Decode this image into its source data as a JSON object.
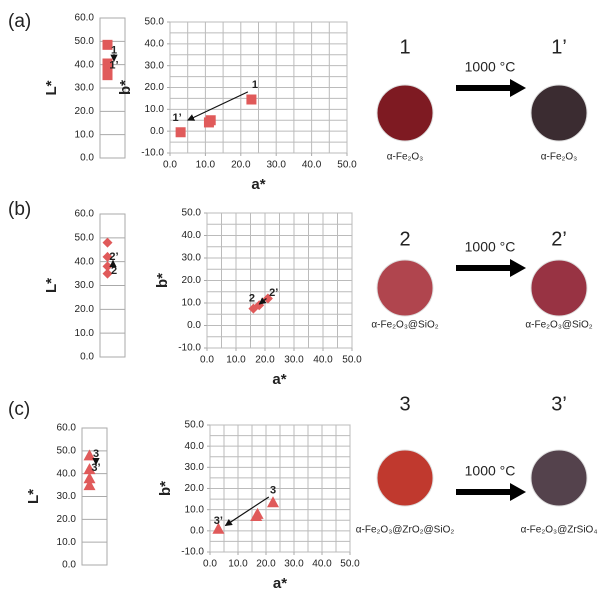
{
  "chart_data": [
    {
      "type": "scatter",
      "ylabel": "L*",
      "marker": "square",
      "color": "#e05a5a",
      "values": [
        48.5,
        40.5,
        38,
        35.5
      ],
      "ylim": [
        0,
        60
      ],
      "yticks": [
        {
          "value": 0,
          "label": "0.0"
        },
        {
          "value": 10,
          "label": "10.0"
        },
        {
          "value": 20,
          "label": "20.0"
        },
        {
          "value": 30,
          "label": "30.0"
        },
        {
          "value": 40,
          "label": "40.0"
        },
        {
          "value": 50,
          "label": "50.0"
        },
        {
          "value": 60,
          "label": "60.0"
        }
      ],
      "grid": true,
      "annotations": [
        "1",
        "1’"
      ]
    },
    {
      "type": "scatter",
      "xlabel": "a*",
      "ylabel": "b*",
      "marker": "square",
      "color": "#e05a5a",
      "x": [
        23,
        11.5,
        11,
        3
      ],
      "values": [
        14.5,
        5,
        4,
        -0.5
      ],
      "xlim": [
        0,
        50
      ],
      "ylim": [
        -10,
        50
      ],
      "xticks": [
        {
          "value": 0,
          "label": "0.0"
        },
        {
          "value": 10,
          "label": "10.0"
        },
        {
          "value": 20,
          "label": "20.0"
        },
        {
          "value": 30,
          "label": "30.0"
        },
        {
          "value": 40,
          "label": "40.0"
        },
        {
          "value": 50,
          "label": "50.0"
        }
      ],
      "yticks": [
        {
          "value": -10,
          "label": "-10.0"
        },
        {
          "value": 0,
          "label": "0.0"
        },
        {
          "value": 10,
          "label": "10.0"
        },
        {
          "value": 20,
          "label": "20.0"
        },
        {
          "value": 30,
          "label": "30.0"
        },
        {
          "value": 40,
          "label": "40.0"
        },
        {
          "value": 50,
          "label": "50.0"
        }
      ],
      "xgrid": [
        0,
        5,
        10,
        15,
        20,
        25,
        30,
        35,
        40,
        45,
        50
      ],
      "ygrid": [
        -10,
        -5,
        0,
        5,
        10,
        15,
        20,
        25,
        30,
        35,
        40,
        45,
        50
      ],
      "grid": true,
      "annotations": [
        "1",
        "1’"
      ]
    },
    {
      "type": "scatter",
      "ylabel": "L*",
      "marker": "diamond",
      "color": "#e05a5a",
      "values": [
        48,
        42,
        38,
        35
      ],
      "ylim": [
        0,
        60
      ],
      "yticks": [
        {
          "value": 0,
          "label": "0.0"
        },
        {
          "value": 10,
          "label": "10.0"
        },
        {
          "value": 20,
          "label": "20.0"
        },
        {
          "value": 30,
          "label": "30.0"
        },
        {
          "value": 40,
          "label": "40.0"
        },
        {
          "value": 50,
          "label": "50.0"
        },
        {
          "value": 60,
          "label": "60.0"
        }
      ],
      "grid": true,
      "annotations": [
        "2’",
        "2"
      ]
    },
    {
      "type": "scatter",
      "xlabel": "a*",
      "ylabel": "b*",
      "marker": "diamond",
      "color": "#e05a5a",
      "x": [
        16,
        18,
        21
      ],
      "values": [
        7.5,
        9,
        12
      ],
      "xlim": [
        0,
        50
      ],
      "ylim": [
        -10,
        50
      ],
      "xticks": [
        {
          "value": 0,
          "label": "0.0"
        },
        {
          "value": 10,
          "label": "10.0"
        },
        {
          "value": 20,
          "label": "20.0"
        },
        {
          "value": 30,
          "label": "30.0"
        },
        {
          "value": 40,
          "label": "40.0"
        },
        {
          "value": 50,
          "label": "50.0"
        }
      ],
      "yticks": [
        {
          "value": -10,
          "label": "-10.0"
        },
        {
          "value": 0,
          "label": "0.0"
        },
        {
          "value": 10,
          "label": "10.0"
        },
        {
          "value": 20,
          "label": "20.0"
        },
        {
          "value": 30,
          "label": "30.0"
        },
        {
          "value": 40,
          "label": "40.0"
        },
        {
          "value": 50,
          "label": "50.0"
        }
      ],
      "xgrid": [
        0,
        5,
        10,
        15,
        20,
        25,
        30,
        35,
        40,
        45,
        50
      ],
      "ygrid": [
        -10,
        -5,
        0,
        5,
        10,
        15,
        20,
        25,
        30,
        35,
        40,
        45,
        50
      ],
      "grid": true,
      "annotations": [
        "2’",
        "2"
      ]
    },
    {
      "type": "scatter",
      "ylabel": "L*",
      "marker": "triangle",
      "color": "#e05a5a",
      "values": [
        48,
        42,
        38,
        35
      ],
      "ylim": [
        0,
        60
      ],
      "yticks": [
        {
          "value": 0,
          "label": "0.0"
        },
        {
          "value": 10,
          "label": "10.0"
        },
        {
          "value": 20,
          "label": "20.0"
        },
        {
          "value": 30,
          "label": "30.0"
        },
        {
          "value": 40,
          "label": "40.0"
        },
        {
          "value": 50,
          "label": "50.0"
        },
        {
          "value": 60,
          "label": "60.0"
        }
      ],
      "grid": true,
      "annotations": [
        "3",
        "3’"
      ]
    },
    {
      "type": "scatter",
      "xlabel": "a*",
      "ylabel": "b*",
      "marker": "triangle",
      "color": "#e05a5a",
      "x": [
        3,
        16.5,
        17,
        22.5
      ],
      "values": [
        1,
        7,
        8,
        13.5
      ],
      "xlim": [
        0,
        50
      ],
      "ylim": [
        -10,
        50
      ],
      "xticks": [
        {
          "value": 0,
          "label": "0.0"
        },
        {
          "value": 10,
          "label": "10.0"
        },
        {
          "value": 20,
          "label": "20.0"
        },
        {
          "value": 30,
          "label": "30.0"
        },
        {
          "value": 40,
          "label": "40.0"
        },
        {
          "value": 50,
          "label": "50.0"
        }
      ],
      "yticks": [
        {
          "value": -10,
          "label": "-10.0"
        },
        {
          "value": 0,
          "label": "0.0"
        },
        {
          "value": 10,
          "label": "10.0"
        },
        {
          "value": 20,
          "label": "20.0"
        },
        {
          "value": 30,
          "label": "30.0"
        },
        {
          "value": 40,
          "label": "40.0"
        },
        {
          "value": 50,
          "label": "50.0"
        }
      ],
      "xgrid": [
        0,
        5,
        10,
        15,
        20,
        25,
        30,
        35,
        40,
        45,
        50
      ],
      "ygrid": [
        -10,
        -5,
        0,
        5,
        10,
        15,
        20,
        25,
        30,
        35,
        40,
        45,
        50
      ],
      "grid": true,
      "annotations": [
        "3",
        "3’"
      ]
    }
  ],
  "panels": [
    {
      "label": "(a)",
      "treatment": "1000 °C",
      "before": {
        "id": "1",
        "caption": "α-Fe₂O₃"
      },
      "after": {
        "id": "1’",
        "caption": "α-Fe₂O₃"
      }
    },
    {
      "label": "(b)",
      "treatment": "1000 °C",
      "before": {
        "id": "2",
        "caption": "α-Fe₂O₃@SiO₂"
      },
      "after": {
        "id": "2’",
        "caption": "α-Fe₂O₃@SiO₂"
      }
    },
    {
      "label": "(c)",
      "treatment": "1000 °C",
      "before": {
        "id": "3",
        "caption": "α-Fe₂O₃@ZrO₂@SiO₂"
      },
      "after": {
        "id": "3’",
        "caption": "α-Fe₂O₃@ZrSiO₄"
      }
    }
  ]
}
